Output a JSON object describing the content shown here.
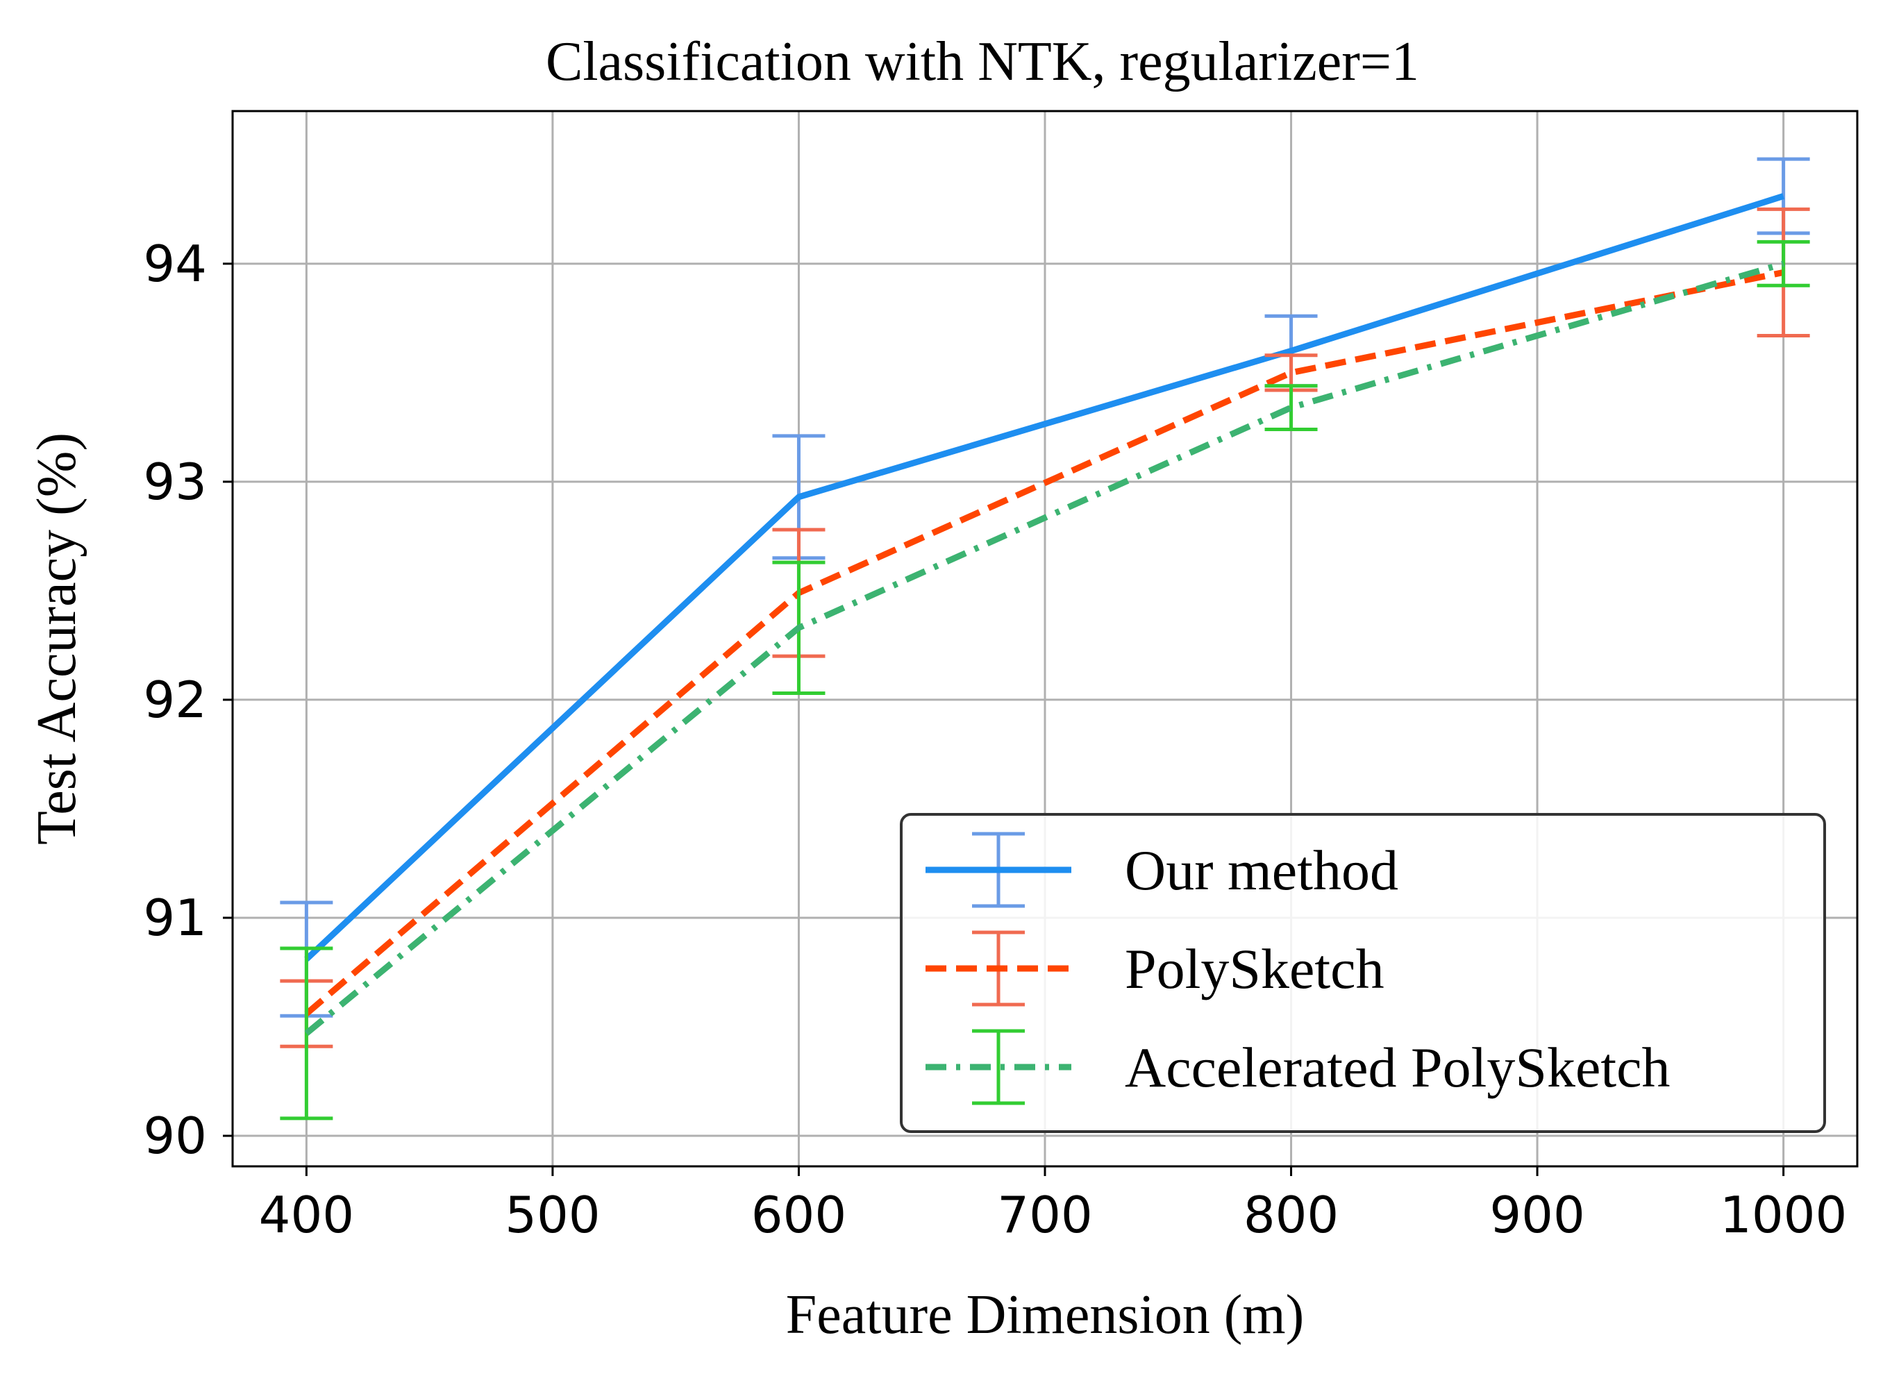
{
  "chart_data": {
    "type": "line",
    "title": "Classification with NTK, regularizer=1",
    "xlabel": "Feature Dimension (m)",
    "ylabel": "Test Accuracy (%)",
    "x": [
      400,
      600,
      800,
      1000
    ],
    "xlim": [
      370,
      1030
    ],
    "ylim": [
      89.86,
      94.7
    ],
    "xticks": [
      400,
      500,
      600,
      700,
      800,
      900,
      1000
    ],
    "yticks": [
      90,
      91,
      92,
      93,
      94
    ],
    "xtick_labels": [
      "400",
      "500",
      "600",
      "700",
      "800",
      "900",
      "1000"
    ],
    "ytick_labels": [
      "90",
      "91",
      "92",
      "93",
      "94"
    ],
    "grid": true,
    "legend_position": "lower-right",
    "series": [
      {
        "name": "Our method",
        "values": [
          90.81,
          92.93,
          93.6,
          94.31
        ],
        "errors": [
          0.26,
          0.28,
          0.16,
          0.17
        ],
        "line_color": "#1e8ef0",
        "errorbar_color": "#6a9be6",
        "line_style": "solid"
      },
      {
        "name": "PolySketch",
        "values": [
          90.56,
          92.49,
          93.5,
          93.96
        ],
        "errors": [
          0.15,
          0.29,
          0.08,
          0.29
        ],
        "line_color": "#ff4500",
        "errorbar_color": "#f06a50",
        "line_style": "dashed"
      },
      {
        "name": "Accelerated PolySketch",
        "values": [
          90.47,
          92.33,
          93.34,
          94.0
        ],
        "errors": [
          0.39,
          0.3,
          0.1,
          0.1
        ],
        "line_color": "#3cb371",
        "errorbar_color": "#32cd32",
        "line_style": "dashdot"
      }
    ]
  }
}
